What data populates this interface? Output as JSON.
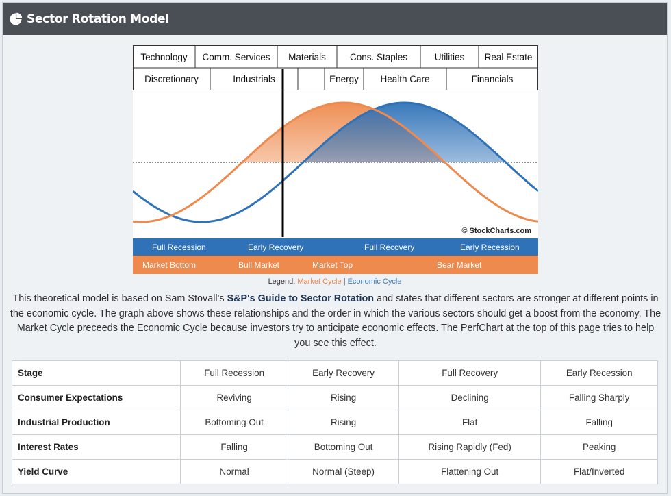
{
  "header": {
    "title": "Sector Rotation Model",
    "icon": "pie-chart-icon"
  },
  "chart_data": {
    "type": "line",
    "sectors_row1": [
      "Technology",
      "Comm. Services",
      "Materials",
      "Cons. Staples",
      "Utilities",
      "Real Estate"
    ],
    "sectors_row2": [
      "Discretionary",
      "Industrials",
      "",
      "Energy",
      "Health Care",
      "Financials"
    ],
    "series": [
      {
        "name": "Market Cycle",
        "color": "#ee8a4d",
        "x": [
          0,
          0.25,
          0.5,
          0.75,
          1
        ],
        "y": [
          -0.85,
          0,
          0.85,
          0,
          -0.85
        ]
      },
      {
        "name": "Economic Cycle",
        "color": "#2f72b8",
        "x": [
          0,
          0.25,
          0.5,
          0.75,
          1
        ],
        "y": [
          0.0,
          -0.85,
          0,
          0.85,
          0
        ]
      }
    ],
    "copyright": "© StockCharts.com",
    "economic_stages": [
      "Full Recession",
      "Early Recovery",
      "Full Recovery",
      "Early Recession"
    ],
    "market_stages": [
      "Market Bottom",
      "Bull Market",
      "Market Top",
      "Bear Market"
    ],
    "colors": {
      "market": "#ee8a4d",
      "economic": "#2f72b8",
      "marker": "#000000"
    }
  },
  "legend": {
    "label": "Legend:",
    "market": "Market Cycle",
    "sep": "|",
    "economic": "Economic Cycle"
  },
  "description": {
    "p1": "This theoretical model is based on Sam Stovall's ",
    "bold": "S&P's Guide to Sector Rotation",
    "p2": " and states that different sectors are stronger at different points in the economic cycle. The graph above shows these relationships and the order in which the various sectors should get a boost from the economy. The Market Cycle preceeds the Economic Cycle because investors try to anticipate economic effects. The PerfChart at the top of this page tries to help you see this effect."
  },
  "table": {
    "rows": [
      {
        "label": "Stage",
        "values": [
          "Full Recession",
          "Early Recovery",
          "Full Recovery",
          "Early Recession"
        ]
      },
      {
        "label": "Consumer Expectations",
        "values": [
          "Reviving",
          "Rising",
          "Declining",
          "Falling Sharply"
        ]
      },
      {
        "label": "Industrial Production",
        "values": [
          "Bottoming Out",
          "Rising",
          "Flat",
          "Falling"
        ]
      },
      {
        "label": "Interest Rates",
        "values": [
          "Falling",
          "Bottoming Out",
          "Rising Rapidly (Fed)",
          "Peaking"
        ]
      },
      {
        "label": "Yield Curve",
        "values": [
          "Normal",
          "Normal (Steep)",
          "Flattening Out",
          "Flat/Inverted"
        ]
      }
    ]
  }
}
